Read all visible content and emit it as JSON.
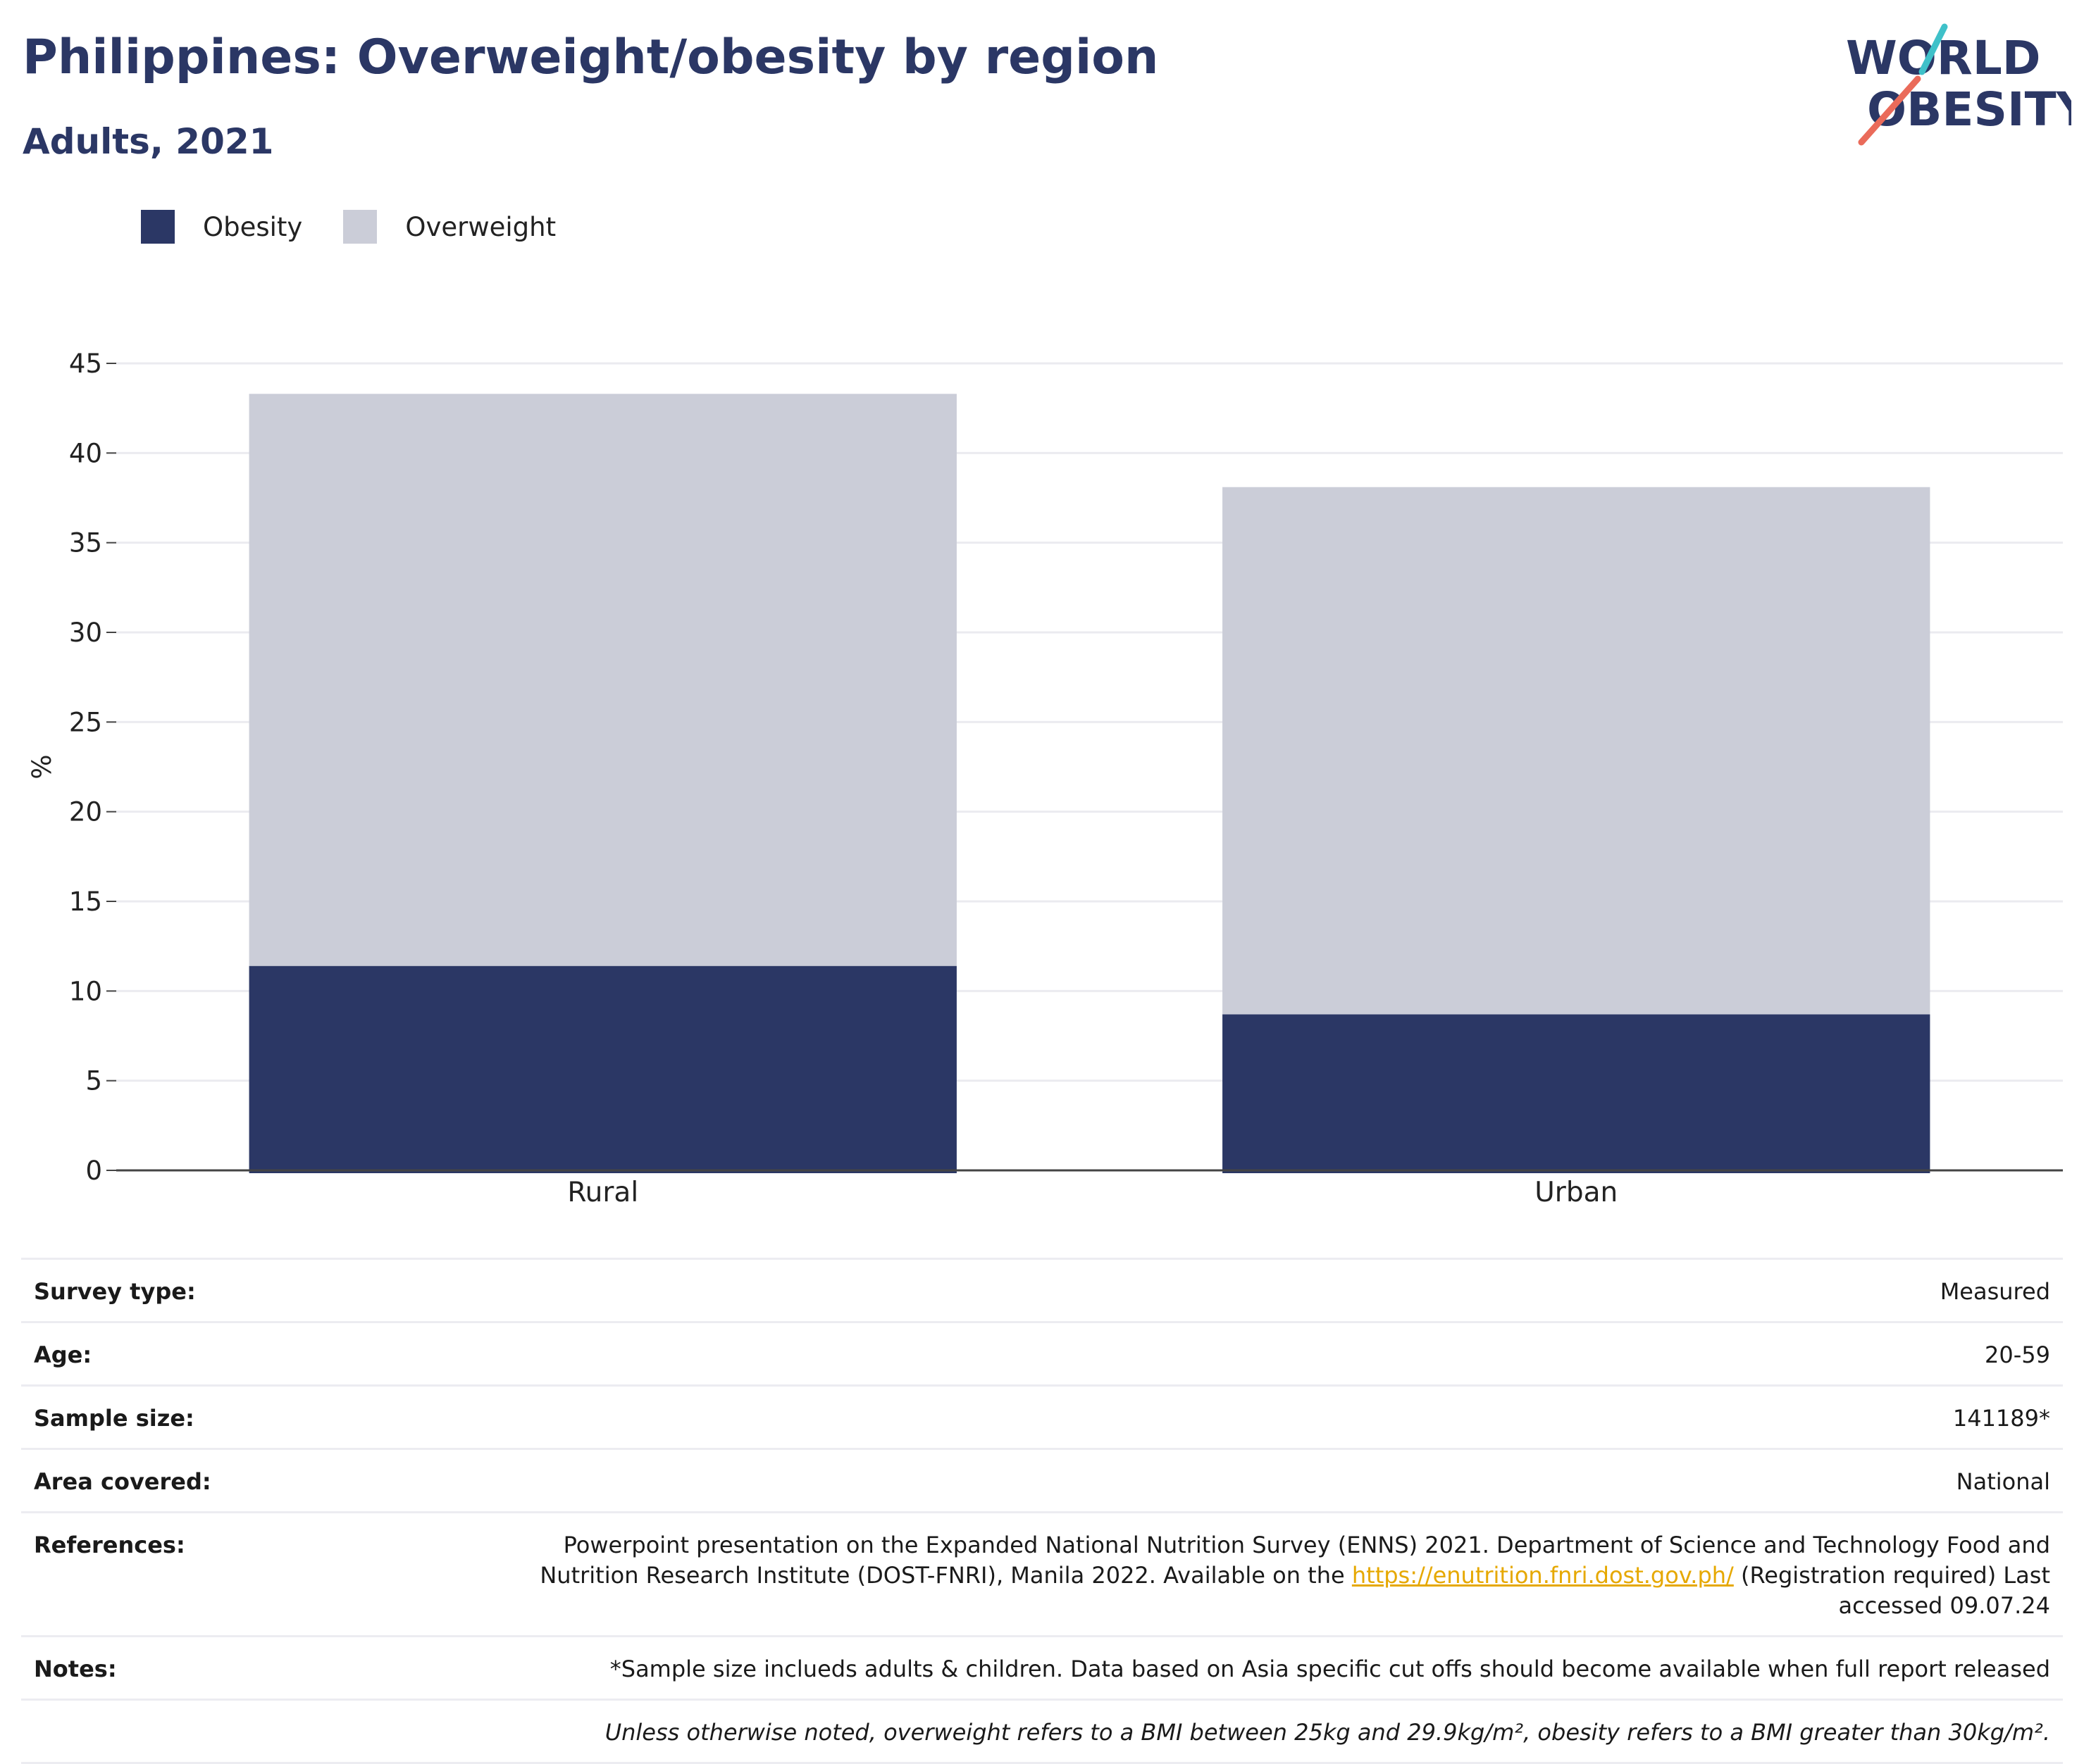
{
  "header": {
    "title": "Philippines: Overweight/obesity by region",
    "subtitle": "Adults, 2021",
    "logo_line1": "WORLD",
    "logo_line2": "OBESITY"
  },
  "colors": {
    "obesity": "#2b3765",
    "overweight": "#cbcdd8",
    "title": "#2b3765",
    "link": "#e6a800",
    "logo_teal": "#3fc1c9",
    "logo_coral": "#ea6b5a"
  },
  "legend": [
    {
      "label": "Obesity",
      "color": "#2b3765"
    },
    {
      "label": "Overweight",
      "color": "#cbcdd8"
    }
  ],
  "chart_data": {
    "type": "bar",
    "stacked": true,
    "categories": [
      "Rural",
      "Urban"
    ],
    "series": [
      {
        "name": "Obesity",
        "values": [
          11.4,
          8.7
        ]
      },
      {
        "name": "Overweight",
        "values": [
          31.9,
          29.4
        ]
      }
    ],
    "ylabel": "%",
    "ylim": [
      0,
      45
    ],
    "yticks": [
      0,
      5,
      10,
      15,
      20,
      25,
      30,
      35,
      40,
      45
    ],
    "grid": true,
    "legend_position": "top-left"
  },
  "meta": [
    {
      "label": "Survey type:",
      "value": "Measured"
    },
    {
      "label": "Age:",
      "value": "20-59"
    },
    {
      "label": "Sample size:",
      "value": "141189*"
    },
    {
      "label": "Area covered:",
      "value": "National"
    },
    {
      "label": "References:",
      "value_before": "Powerpoint presentation on the Expanded National Nutrition Survey (ENNS) 2021. Department of Science and Technology Food and Nutrition Research Institute (DOST-FNRI), Manila 2022. Available on the ",
      "link": "https://enutrition.fnri.dost.gov.ph/",
      "value_after": " (Registration required) Last accessed 09.07.24"
    },
    {
      "label": "Notes:",
      "value": "*Sample size inclueds adults & children. Data based on Asia specific cut offs should become available when full report released"
    },
    {
      "label": "",
      "value": "Unless otherwise noted, overweight refers to a BMI between 25kg and 29.9kg/m², obesity refers to a BMI greater than 30kg/m²."
    }
  ]
}
